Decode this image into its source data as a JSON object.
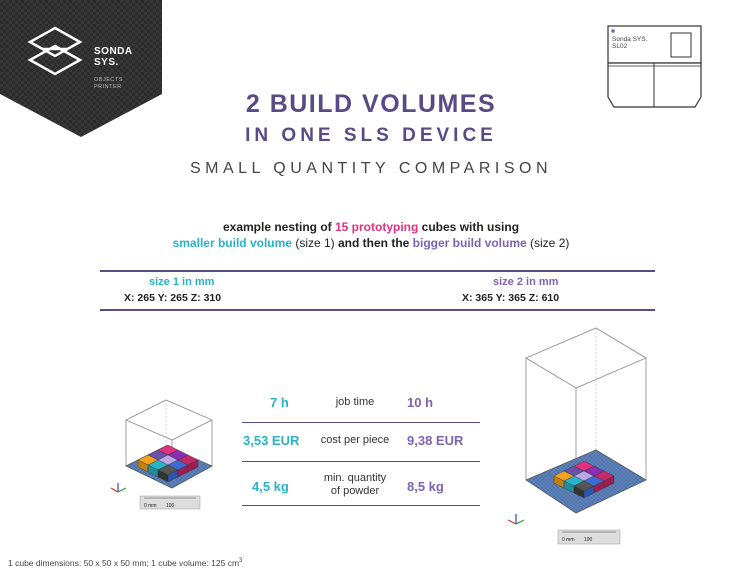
{
  "brand": {
    "name_line1": "SONDA",
    "name_line2": "SYS.",
    "tagline_line1": "OBJECTS",
    "tagline_line2": "PRINTER"
  },
  "device": {
    "label_line1": "Sonda SYS.",
    "label_line2": "SL02"
  },
  "title": {
    "line1": "2 BUILD VOLUMES",
    "line2": "IN ONE SLS  DEVICE",
    "subtitle": "SMALL QUANTITY COMPARISON"
  },
  "intro": {
    "part1": "example nesting of ",
    "count": "15 prototyping",
    "part2": " cubes with using",
    "smaller": "smaller build volume",
    "size1": " (size 1) ",
    "and_then": "and then the ",
    "bigger": "bigger build volume",
    "size2": " (size 2)"
  },
  "sizes": {
    "size1": {
      "label": "size 1 in mm",
      "dims": "X: 265  Y: 265  Z: 310"
    },
    "size2": {
      "label": "size 2 in mm",
      "dims": "X: 365  Y: 365  Z: 610"
    }
  },
  "comparison": [
    {
      "v1": "7 h",
      "metric": "job time",
      "v2": "10 h"
    },
    {
      "v1": "3,53 EUR",
      "metric": "cost per piece",
      "v2": "9,38 EUR"
    },
    {
      "v1": "4,5 kg",
      "metric_line1": "min. quantity",
      "metric_line2": "of powder",
      "v2": "8,5 kg"
    }
  ],
  "scale": {
    "start": "0 mm",
    "end": "100"
  },
  "footnote": {
    "text": "1 cube dimensions: 50 x 50 x 50 mm; 1 cube volume: 125 cm",
    "sup": "3"
  },
  "colors": {
    "purple": "#5a4a86",
    "teal": "#29b3c6",
    "pink": "#e0327e",
    "lilac": "#7d63b4",
    "badge": "#2f2f2f"
  }
}
